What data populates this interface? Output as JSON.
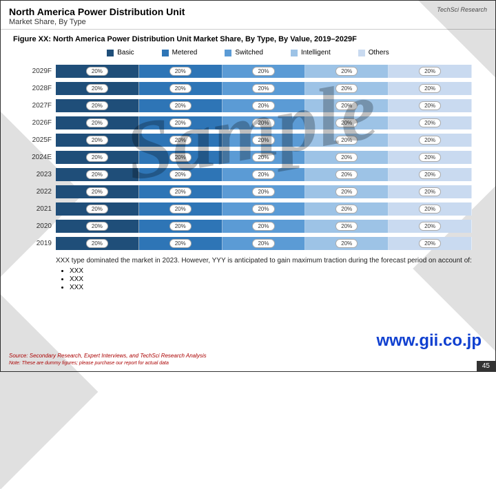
{
  "header": {
    "title": "North America Power Distribution Unit",
    "subtitle": "Market Share, By Type",
    "logo_text": "TechSci Research"
  },
  "figure_title": "Figure XX: North America Power Distribution Unit Market Share, By Type, By Value, 2019–2029F",
  "legend": [
    {
      "label": "Basic",
      "color": "#1f4e79"
    },
    {
      "label": "Metered",
      "color": "#2e75b6"
    },
    {
      "label": "Switched",
      "color": "#5b9bd5"
    },
    {
      "label": "Intelligent",
      "color": "#9dc3e6"
    },
    {
      "label": "Others",
      "color": "#c9daf0"
    }
  ],
  "chart": {
    "type": "stacked-bar-horizontal",
    "value_label": "20%",
    "segment_width_pct": 20,
    "categories": [
      "2029F",
      "2028F",
      "2027F",
      "2026F",
      "2025F",
      "2024E",
      "2023",
      "2022",
      "2021",
      "2020",
      "2019"
    ],
    "segment_colors": [
      "#1f4e79",
      "#2e75b6",
      "#5b9bd5",
      "#9dc3e6",
      "#c9daf0"
    ],
    "label_fontsize": 10,
    "value_badge_bg": "#ffffff",
    "value_badge_border": "#aaaaaa",
    "background_color": "#ffffff"
  },
  "commentary": "XXX type dominated the market in 2023. However, YYY is anticipated to gain maximum traction during the forecast period on account of:",
  "bullets": [
    "XXX",
    "XXX",
    "XXX"
  ],
  "source": "Source: Secondary Research, Expert Interviews, and TechSci Research Analysis",
  "note": "Note: These are dummy figures; please purchase our report for actual data",
  "url_watermark": "www.gii.co.jp",
  "sample_watermark": "Sample",
  "page_number": "45"
}
